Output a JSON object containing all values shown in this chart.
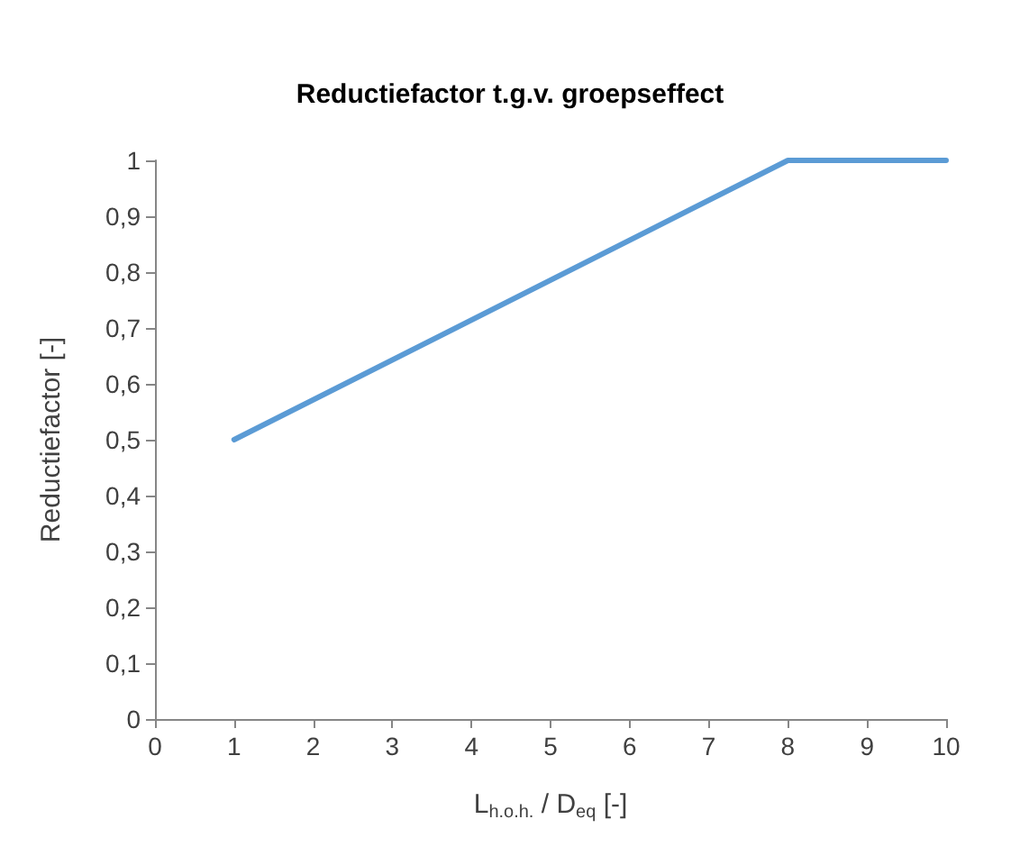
{
  "chart_data": {
    "type": "line",
    "title": "Reductiefactor t.g.v. groepseffect",
    "xlabel": "L$_{h.o.h.}$ / D$_{eq}$ [-]",
    "ylabel": "Reductiefactor [-]",
    "x": [
      1,
      8,
      10
    ],
    "series": [
      {
        "color": "#5b9bd5",
        "values": [
          0.5,
          1,
          1
        ]
      }
    ],
    "xlim": [
      0,
      10
    ],
    "xticks": [
      0,
      1,
      2,
      3,
      4,
      5,
      6,
      7,
      8,
      9,
      10
    ],
    "ylim": [
      0,
      1
    ],
    "yticks": [
      0,
      {
        "value": 0.1,
        "label": "0,1"
      },
      {
        "value": 0.2,
        "label": "0,2"
      },
      {
        "value": 0.3,
        "label": "0,3"
      },
      {
        "value": 0.4,
        "label": "0,4"
      },
      {
        "value": 0.5,
        "label": "0,5"
      },
      {
        "value": 0.6,
        "label": "0,6"
      },
      {
        "value": 0.7,
        "label": "0,7"
      },
      {
        "value": 0.8,
        "label": "0,8"
      },
      {
        "value": 0.9,
        "label": "0,9"
      },
      1
    ],
    "grid": false,
    "marker": "none",
    "line_style": "solid"
  }
}
